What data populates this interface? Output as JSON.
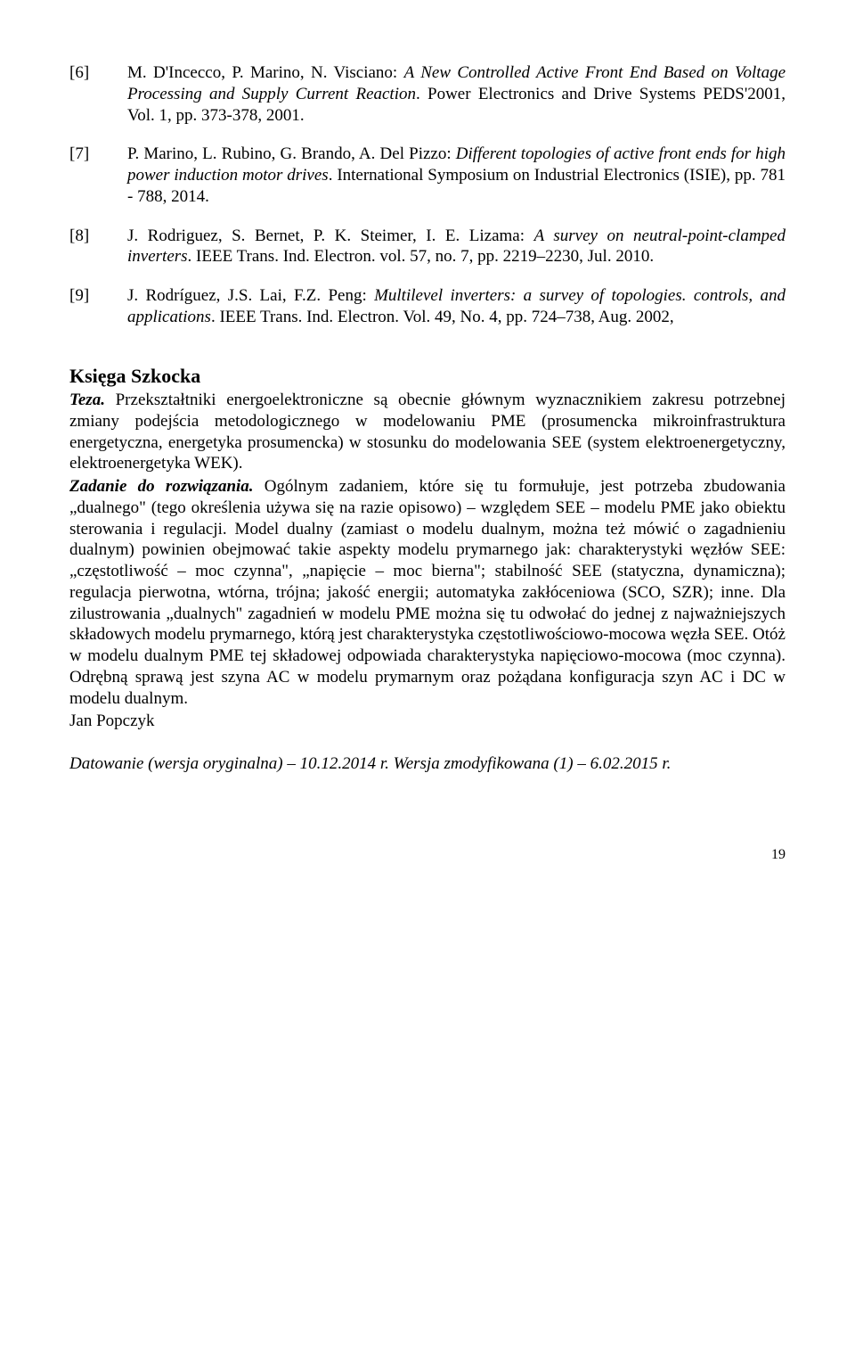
{
  "references": [
    {
      "num": "[6]",
      "authors": "M. D'Incecco, P. Marino, N. Visciano: ",
      "title": "A New Controlled Active Front End Based on Voltage Processing and Supply Current Reaction",
      "tail": ". Power Electronics and Drive Systems PEDS'2001, Vol. 1, pp. 373-378, 2001."
    },
    {
      "num": "[7]",
      "authors": "P. Marino, L. Rubino, G. Brando, A. Del Pizzo: ",
      "title": "Different topologies of active front ends for high power induction motor drives",
      "tail": ". International Symposium on Industrial Electronics (ISIE), pp. 781 - 788, 2014."
    },
    {
      "num": "[8]",
      "authors": "J. Rodriguez, S. Bernet, P. K. Steimer, I. E. Lizama: ",
      "title": "A survey on neutral-point-clamped inverters",
      "tail": ". IEEE Trans. Ind. Electron. vol. 57, no. 7, pp. 2219–2230, Jul. 2010."
    },
    {
      "num": "[9]",
      "authors": "J. Rodríguez, J.S. Lai, F.Z. Peng: ",
      "title": "Multilevel inverters: a survey of topologies. controls, and applications",
      "tail": ". IEEE Trans. Ind. Electron. Vol. 49, No. 4, pp. 724–738, Aug. 2002,"
    }
  ],
  "section": {
    "title": "Księga Szkocka",
    "teza_label": "Teza.",
    "teza_text": " Przekształtniki energoelektroniczne są obecnie głównym wyznacznikiem zakresu potrzebnej zmiany podejścia metodologicznego w modelowaniu PME (prosumencka mikroinfrastruktura energetyczna, energetyka prosumencka) w stosunku do modelowania SEE (system elektroenergetyczny, elektroenergetyka WEK).",
    "zadanie_label": "Zadanie do rozwiązania.",
    "zadanie_text": " Ogólnym zadaniem, które się tu formułuje, jest potrzeba zbudowania „dualnego\" (tego określenia używa się na razie opisowo) – względem SEE – modelu PME jako obiektu sterowania i regulacji. Model dualny (zamiast o modelu dualnym, można też mówić o zagadnieniu dualnym) powinien obejmować takie aspekty modelu prymarnego jak: charakterystyki węzłów SEE: „częstotliwość – moc czynna\", „napięcie – moc bierna\"; stabilność SEE (statyczna, dynamiczna); regulacja pierwotna, wtórna, trójna; jakość energii; automatyka zakłóceniowa (SCO, SZR); inne. Dla zilustrowania „dualnych\" zagadnień w modelu PME można się tu odwołać do jednej z najważniejszych składowych modelu prymarnego, którą jest charakterystyka częstotliwościowo-mocowa węzła SEE. Otóż w modelu dualnym PME tej składowej odpowiada charakterystyka napięciowo-mocowa (moc czynna). Odrębną sprawą jest szyna AC w modelu prymarnym oraz pożądana konfiguracja szyn AC i DC w modelu dualnym.",
    "author": "Jan Popczyk",
    "dating": "Datowanie (wersja oryginalna) – 10.12.2014 r. Wersja zmodyfikowana (1) – 6.02.2015 r."
  },
  "page_number": "19"
}
